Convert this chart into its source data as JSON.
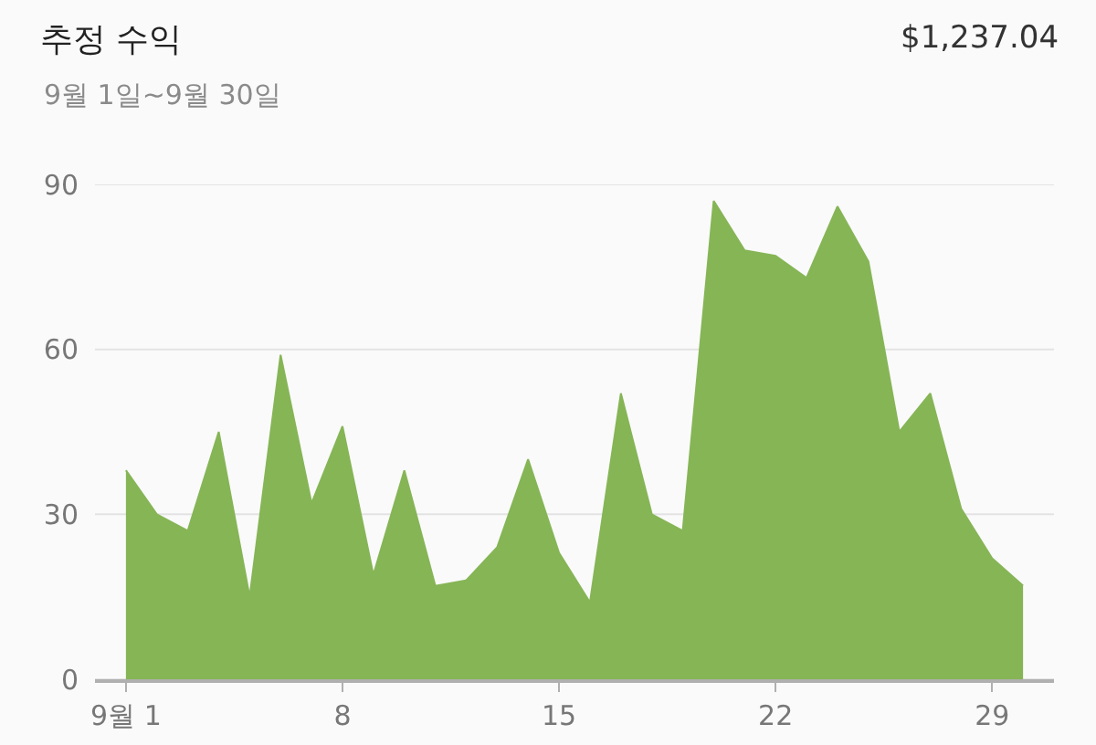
{
  "chart_data": {
    "type": "area",
    "title": "추정 수익",
    "subtitle": "9월 1일~9월 30일",
    "annotations": [
      "$1,237.04"
    ],
    "x": [
      1,
      2,
      3,
      4,
      5,
      6,
      7,
      8,
      9,
      10,
      11,
      12,
      13,
      14,
      15,
      16,
      17,
      18,
      19,
      20,
      21,
      22,
      23,
      24,
      25,
      26,
      27,
      28,
      29,
      30
    ],
    "values": [
      38,
      30,
      27,
      45,
      15,
      59,
      32,
      46,
      19,
      38,
      17,
      18,
      24,
      40,
      23,
      14,
      52,
      30,
      27,
      87,
      78,
      77,
      73,
      86,
      76,
      45,
      52,
      31,
      22,
      17
    ],
    "color": "#86b556",
    "xlim": [
      0,
      31
    ],
    "xticks": [
      {
        "value": 1,
        "label": "9월 1"
      },
      8,
      15,
      22,
      29
    ],
    "ylim": [
      0,
      90
    ],
    "yticks": [
      0,
      30,
      60,
      90
    ],
    "grid": "y"
  }
}
